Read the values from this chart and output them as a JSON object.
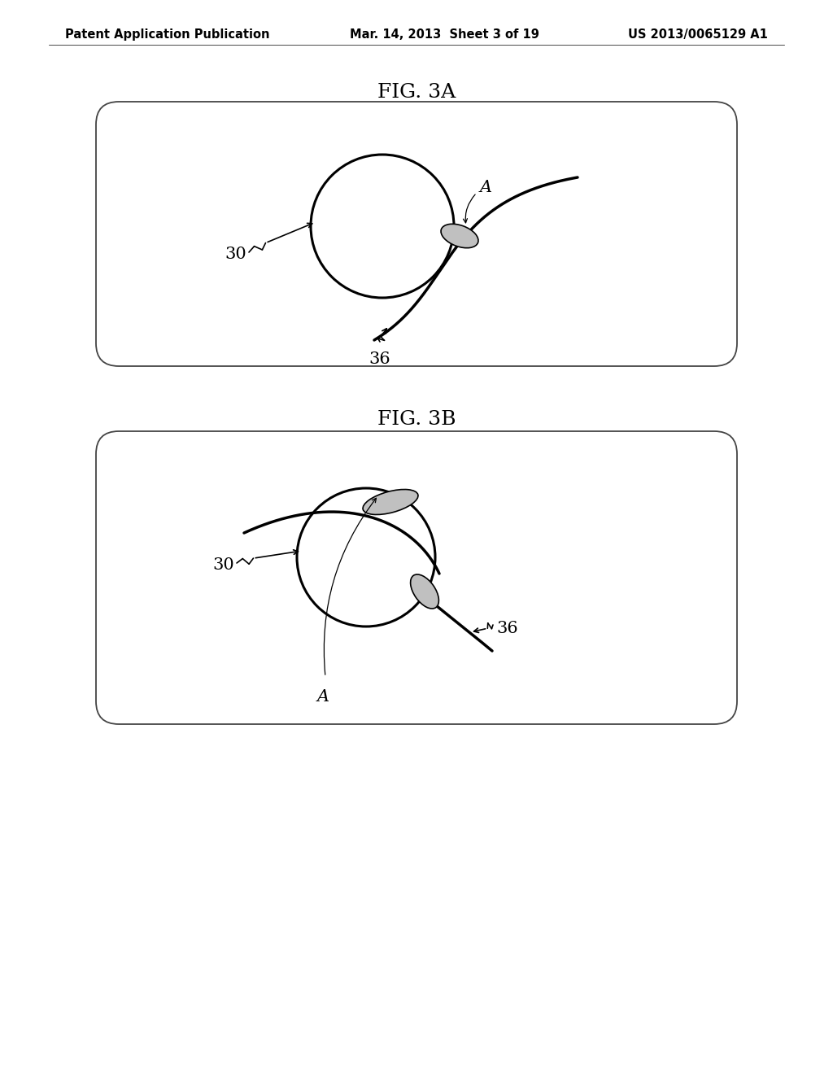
{
  "background_color": "#ffffff",
  "header_left": "Patent Application Publication",
  "header_center": "Mar. 14, 2013  Sheet 3 of 19",
  "header_right": "US 2013/0065129 A1",
  "fig3a_title": "FIG. 3A",
  "fig3b_title": "FIG. 3B",
  "label_30": "30",
  "label_36": "36",
  "label_A": "A"
}
